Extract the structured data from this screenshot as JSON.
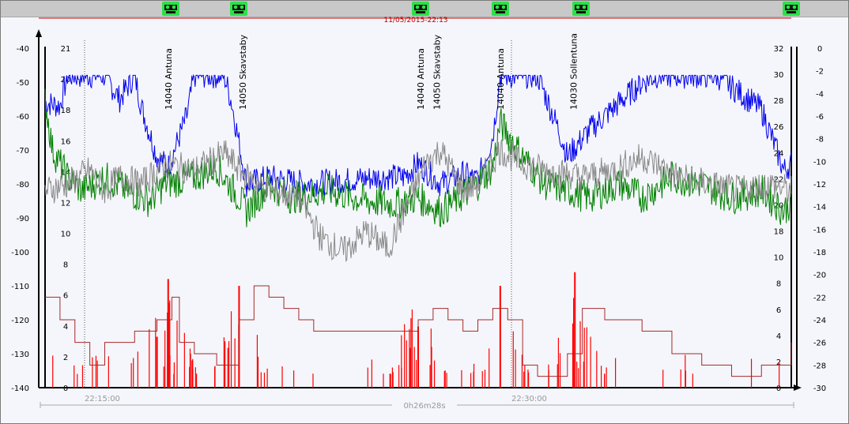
{
  "header": {
    "timestamp": "11/05/2015-22:13",
    "duration": "0h26m28s"
  },
  "markers_icon": "handset-icon",
  "colors": {
    "background": "#f5f6fb",
    "topbar": "#c8c8c8",
    "marker": "#2ee04a",
    "blue_series": "#0000ee",
    "green_series": "#008000",
    "gray_series": "#8a8a8a",
    "red_series": "#ff0000",
    "step_series": "#a52a2a",
    "timeline": "#c00000"
  },
  "chart_data": {
    "type": "line",
    "left_axis": {
      "min": -140,
      "max": -40,
      "ticks": [
        "-40",
        "-50",
        "-60",
        "-70",
        "-80",
        "-90",
        "-100",
        "-110",
        "-120",
        "-130",
        "-140"
      ]
    },
    "inner_left_axis": {
      "min": 0,
      "max": 21,
      "ticks": [
        "21",
        "20",
        "18",
        "16",
        "14",
        "12",
        "10",
        "8",
        "6",
        "4",
        "2",
        "0"
      ]
    },
    "inner_right_axis": {
      "min": 0,
      "max": 32,
      "ticks": [
        "32",
        "30",
        "28",
        "26",
        "24",
        "22",
        "20",
        "18",
        "10",
        "8",
        "6",
        "4",
        "2",
        "0"
      ]
    },
    "right_axis": {
      "min": -30,
      "max": 0,
      "ticks": [
        "0",
        "-2",
        "-4",
        "-6",
        "-8",
        "-10",
        "-12",
        "-14",
        "-16",
        "-18",
        "-20",
        "-22",
        "-24",
        "-26",
        "-28",
        "-30"
      ]
    },
    "time_labels": [
      "22:15:00",
      "22:30:00"
    ],
    "annotations": [
      {
        "text": "14040 Antuna",
        "t": 0.165
      },
      {
        "text": "14050 Skavstaby",
        "t": 0.265
      },
      {
        "text": "14040 Antuna",
        "t": 0.503
      },
      {
        "text": "14050 Skavstaby",
        "t": 0.525
      },
      {
        "text": "14040 Antuna",
        "t": 0.61
      },
      {
        "text": "14030 Sollentuna",
        "t": 0.708
      }
    ],
    "handover_times": [
      0.168,
      0.26,
      0.503,
      0.61,
      0.718,
      1.0
    ],
    "series": [
      {
        "color": "blue",
        "axis": "left",
        "points": [
          [
            0,
            -56
          ],
          [
            0.02,
            -57
          ],
          [
            0.03,
            -48
          ],
          [
            0.08,
            -48
          ],
          [
            0.1,
            -55
          ],
          [
            0.12,
            -48
          ],
          [
            0.13,
            -58
          ],
          [
            0.15,
            -72
          ],
          [
            0.165,
            -75
          ],
          [
            0.19,
            -60
          ],
          [
            0.2,
            -48
          ],
          [
            0.24,
            -48
          ],
          [
            0.25,
            -56
          ],
          [
            0.27,
            -80
          ],
          [
            0.3,
            -78
          ],
          [
            0.35,
            -80
          ],
          [
            0.4,
            -79
          ],
          [
            0.45,
            -78
          ],
          [
            0.48,
            -78
          ],
          [
            0.5,
            -74
          ],
          [
            0.53,
            -80
          ],
          [
            0.56,
            -77
          ],
          [
            0.58,
            -79
          ],
          [
            0.6,
            -66
          ],
          [
            0.61,
            -48
          ],
          [
            0.66,
            -48
          ],
          [
            0.69,
            -65
          ],
          [
            0.7,
            -72
          ],
          [
            0.73,
            -64
          ],
          [
            0.76,
            -58
          ],
          [
            0.8,
            -50
          ],
          [
            0.82,
            -48
          ],
          [
            0.9,
            -48
          ],
          [
            0.93,
            -53
          ],
          [
            0.96,
            -58
          ],
          [
            0.99,
            -76
          ],
          [
            1,
            -74
          ]
        ]
      },
      {
        "color": "green",
        "axis": "left",
        "points": [
          [
            0,
            -55
          ],
          [
            0.01,
            -70
          ],
          [
            0.03,
            -78
          ],
          [
            0.05,
            -82
          ],
          [
            0.08,
            -78
          ],
          [
            0.11,
            -82
          ],
          [
            0.14,
            -85
          ],
          [
            0.16,
            -80
          ],
          [
            0.2,
            -78
          ],
          [
            0.23,
            -75
          ],
          [
            0.26,
            -84
          ],
          [
            0.27,
            -88
          ],
          [
            0.3,
            -80
          ],
          [
            0.33,
            -84
          ],
          [
            0.38,
            -82
          ],
          [
            0.43,
            -85
          ],
          [
            0.47,
            -86
          ],
          [
            0.5,
            -84
          ],
          [
            0.53,
            -88
          ],
          [
            0.55,
            -85
          ],
          [
            0.58,
            -80
          ],
          [
            0.6,
            -75
          ],
          [
            0.61,
            -62
          ],
          [
            0.64,
            -72
          ],
          [
            0.67,
            -80
          ],
          [
            0.7,
            -82
          ],
          [
            0.73,
            -84
          ],
          [
            0.77,
            -80
          ],
          [
            0.8,
            -84
          ],
          [
            0.84,
            -78
          ],
          [
            0.88,
            -80
          ],
          [
            0.92,
            -84
          ],
          [
            0.96,
            -82
          ],
          [
            0.99,
            -88
          ],
          [
            1,
            -85
          ]
        ]
      },
      {
        "color": "gray",
        "axis": "left",
        "points": [
          [
            0,
            -82
          ],
          [
            0.03,
            -80
          ],
          [
            0.06,
            -76
          ],
          [
            0.08,
            -82
          ],
          [
            0.1,
            -78
          ],
          [
            0.13,
            -80
          ],
          [
            0.16,
            -74
          ],
          [
            0.2,
            -76
          ],
          [
            0.24,
            -71
          ],
          [
            0.27,
            -78
          ],
          [
            0.3,
            -82
          ],
          [
            0.34,
            -84
          ],
          [
            0.37,
            -96
          ],
          [
            0.4,
            -100
          ],
          [
            0.43,
            -94
          ],
          [
            0.46,
            -99
          ],
          [
            0.49,
            -84
          ],
          [
            0.51,
            -74
          ],
          [
            0.53,
            -70
          ],
          [
            0.56,
            -82
          ],
          [
            0.58,
            -80
          ],
          [
            0.61,
            -70
          ],
          [
            0.64,
            -74
          ],
          [
            0.67,
            -76
          ],
          [
            0.72,
            -78
          ],
          [
            0.76,
            -76
          ],
          [
            0.8,
            -72
          ],
          [
            0.85,
            -78
          ],
          [
            0.89,
            -80
          ],
          [
            0.93,
            -82
          ],
          [
            0.97,
            -80
          ],
          [
            1,
            -82
          ]
        ]
      },
      {
        "color": "red",
        "axis": "left",
        "points": [
          [
            0.15,
            -125
          ],
          [
            0.165,
            -108
          ],
          [
            0.26,
            -110
          ],
          [
            0.5,
            -122
          ],
          [
            0.61,
            -110
          ],
          [
            0.71,
            -106
          ]
        ]
      },
      {
        "color": "brown-step",
        "axis": "right",
        "points": [
          [
            0,
            -22
          ],
          [
            0.02,
            -24
          ],
          [
            0.04,
            -26
          ],
          [
            0.06,
            -28
          ],
          [
            0.08,
            -26
          ],
          [
            0.12,
            -25
          ],
          [
            0.15,
            -24
          ],
          [
            0.17,
            -22
          ],
          [
            0.18,
            -26
          ],
          [
            0.2,
            -27
          ],
          [
            0.23,
            -28
          ],
          [
            0.26,
            -24
          ],
          [
            0.28,
            -21
          ],
          [
            0.3,
            -22
          ],
          [
            0.32,
            -23
          ],
          [
            0.34,
            -24
          ],
          [
            0.36,
            -25
          ],
          [
            0.5,
            -24
          ],
          [
            0.52,
            -23
          ],
          [
            0.54,
            -24
          ],
          [
            0.56,
            -25
          ],
          [
            0.58,
            -24
          ],
          [
            0.6,
            -23
          ],
          [
            0.62,
            -24
          ],
          [
            0.64,
            -28
          ],
          [
            0.66,
            -29
          ],
          [
            0.7,
            -27
          ],
          [
            0.72,
            -23
          ],
          [
            0.75,
            -24
          ],
          [
            0.8,
            -25
          ],
          [
            0.84,
            -27
          ],
          [
            0.88,
            -28
          ],
          [
            0.92,
            -29
          ],
          [
            0.96,
            -28
          ],
          [
            1,
            -26
          ]
        ]
      }
    ]
  }
}
